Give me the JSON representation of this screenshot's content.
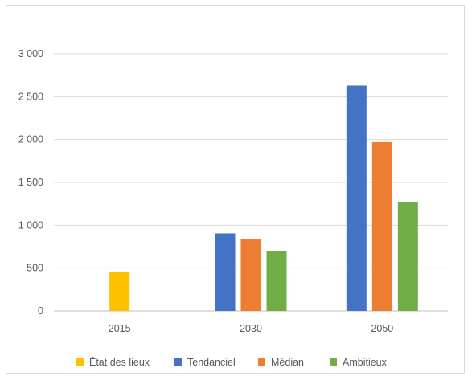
{
  "chart_data": {
    "type": "bar",
    "categories": [
      "2015",
      "2030",
      "2050"
    ],
    "series": [
      {
        "name": "État des lieux",
        "color": "#FFC000",
        "values": [
          450,
          null,
          null
        ]
      },
      {
        "name": "Tendanciel",
        "color": "#4472C4",
        "values": [
          null,
          905,
          2630
        ]
      },
      {
        "name": "Médian",
        "color": "#ED7D31",
        "values": [
          null,
          840,
          1970
        ]
      },
      {
        "name": "Ambitieux",
        "color": "#70AD47",
        "values": [
          null,
          700,
          1270
        ]
      }
    ],
    "y_ticks": [
      "0",
      "500",
      "1 000",
      "1 500",
      "2 000",
      "2 500",
      "3 000"
    ],
    "ylim": [
      0,
      3000
    ],
    "grid": true,
    "legend_position": "bottom",
    "title": "",
    "xlabel": "",
    "ylabel": ""
  }
}
